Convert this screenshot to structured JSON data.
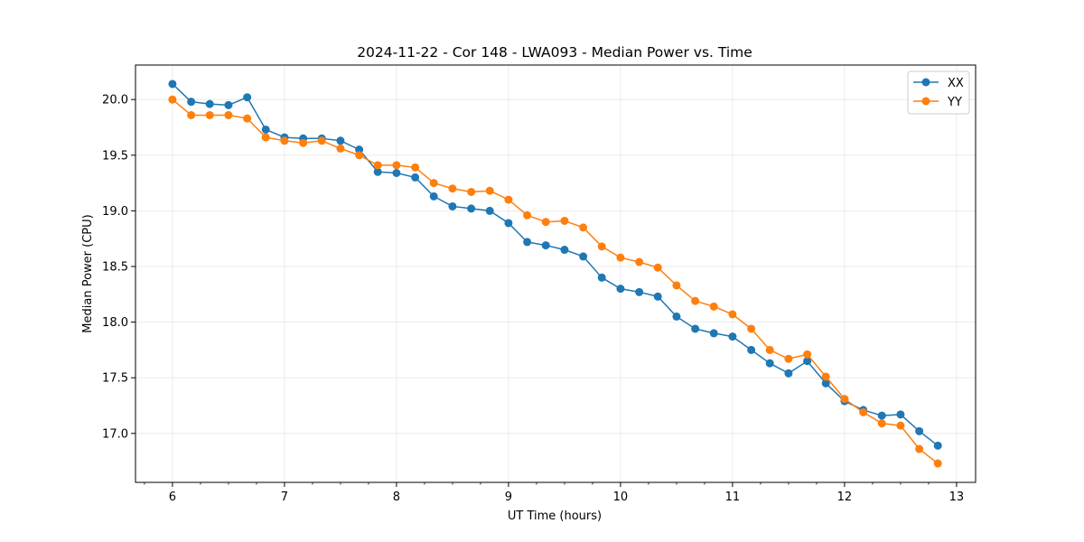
{
  "chart_data": {
    "type": "line",
    "title": "2024-11-22 - Cor 148 - LWA093 - Median Power vs. Time",
    "xlabel": "UT Time (hours)",
    "ylabel": "Median Power (CPU)",
    "xlim": [
      5.67,
      13.17
    ],
    "ylim": [
      16.56,
      20.31
    ],
    "xticks": [
      6,
      7,
      8,
      9,
      10,
      11,
      12,
      13
    ],
    "yticks": [
      17.0,
      17.5,
      18.0,
      18.5,
      19.0,
      19.5,
      20.0
    ],
    "ytick_labels": [
      "17.0",
      "17.5",
      "18.0",
      "18.5",
      "19.0",
      "19.5",
      "20.0"
    ],
    "grid": true,
    "legend_position": "top-right",
    "x": [
      6.0,
      6.167,
      6.333,
      6.5,
      6.667,
      6.833,
      7.0,
      7.167,
      7.333,
      7.5,
      7.667,
      7.833,
      8.0,
      8.167,
      8.333,
      8.5,
      8.667,
      8.833,
      9.0,
      9.167,
      9.333,
      9.5,
      9.667,
      9.833,
      10.0,
      10.167,
      10.333,
      10.5,
      10.667,
      10.833,
      11.0,
      11.167,
      11.333,
      11.5,
      11.667,
      11.833,
      12.0,
      12.167,
      12.333,
      12.5,
      12.667,
      12.833
    ],
    "series": [
      {
        "name": "XX",
        "color": "#1f77b4",
        "values": [
          20.14,
          19.98,
          19.96,
          19.95,
          20.02,
          19.73,
          19.66,
          19.65,
          19.65,
          19.63,
          19.55,
          19.35,
          19.34,
          19.3,
          19.13,
          19.04,
          19.02,
          19.0,
          18.89,
          18.72,
          18.69,
          18.65,
          18.59,
          18.4,
          18.3,
          18.27,
          18.23,
          18.05,
          17.94,
          17.9,
          17.87,
          17.75,
          17.63,
          17.54,
          17.65,
          17.45,
          17.29,
          17.21,
          17.16,
          17.17,
          17.02,
          16.89
        ]
      },
      {
        "name": "YY",
        "color": "#ff7f0e",
        "values": [
          20.0,
          19.86,
          19.86,
          19.86,
          19.83,
          19.66,
          19.63,
          19.61,
          19.63,
          19.56,
          19.5,
          19.41,
          19.41,
          19.39,
          19.25,
          19.2,
          19.17,
          19.18,
          19.1,
          18.96,
          18.9,
          18.91,
          18.85,
          18.68,
          18.58,
          18.54,
          18.49,
          18.33,
          18.19,
          18.14,
          18.07,
          17.94,
          17.75,
          17.67,
          17.71,
          17.51,
          17.31,
          17.19,
          17.09,
          17.07,
          16.86,
          16.73
        ]
      }
    ]
  }
}
